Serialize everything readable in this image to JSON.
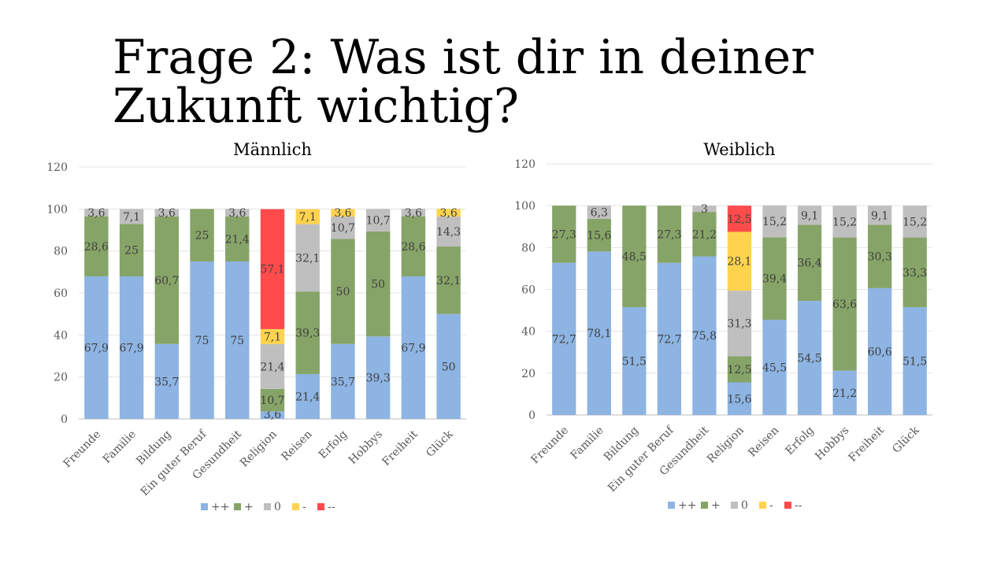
{
  "title": "Frage 2: Was ist dir in deiner Zukunft wichtig?",
  "colors": {
    "++": "#8DB4E2",
    "+": "#86A467",
    "0": "#BFBFBF",
    "-": "#FFD34D",
    "--": "#FF4B4B"
  },
  "chart_data": [
    {
      "type": "bar",
      "stacked": true,
      "title": "Männlich",
      "ylim": [
        0,
        120
      ],
      "yticks": [
        0,
        20,
        40,
        60,
        80,
        100,
        120
      ],
      "categories": [
        "Freunde",
        "Familie",
        "Bildung",
        "Ein guter Beruf",
        "Gesundheit",
        "Religion",
        "Reisen",
        "Erfolg",
        "Hobbys",
        "Freiheit",
        "Glück"
      ],
      "series": [
        {
          "name": "++",
          "values": [
            67.9,
            67.9,
            35.7,
            75,
            75,
            3.6,
            21.4,
            35.7,
            39.3,
            67.9,
            50
          ]
        },
        {
          "name": "+",
          "values": [
            28.6,
            25,
            60.7,
            25,
            21.4,
            10.7,
            39.3,
            50,
            50,
            28.6,
            32.1
          ]
        },
        {
          "name": "0",
          "values": [
            3.6,
            7.1,
            3.6,
            null,
            3.6,
            21.4,
            32.1,
            10.7,
            10.7,
            3.6,
            14.3
          ]
        },
        {
          "name": "-",
          "values": [
            null,
            null,
            null,
            null,
            null,
            7.1,
            7.1,
            3.6,
            null,
            null,
            3.6
          ]
        },
        {
          "name": "--",
          "values": [
            null,
            null,
            null,
            null,
            null,
            57.1,
            null,
            null,
            null,
            null,
            null
          ]
        }
      ],
      "data_labels": [
        [
          "67,9",
          "67,9",
          "35,7",
          "75",
          "75",
          "3,6",
          "21,4",
          "35,7",
          "39,3",
          "67,9",
          "50"
        ],
        [
          "28,6",
          "25",
          "60,7",
          "25",
          "21,4",
          "10,7",
          "39,3",
          "50",
          "50",
          "28,6",
          "32,1"
        ],
        [
          "3,6",
          "7,1",
          "3,6",
          null,
          "3,6",
          "21,4",
          "32,1",
          "10,7",
          "10,7",
          "3,6",
          "14,3"
        ],
        [
          null,
          null,
          null,
          null,
          null,
          "7,1",
          "7,1",
          "3,6",
          null,
          null,
          "3,6"
        ],
        [
          null,
          null,
          null,
          null,
          null,
          "57,1",
          null,
          null,
          null,
          null,
          null
        ]
      ],
      "legend": "bottom"
    },
    {
      "type": "bar",
      "stacked": true,
      "title": "Weiblich",
      "ylim": [
        0,
        120
      ],
      "yticks": [
        0,
        20,
        40,
        60,
        80,
        100,
        120
      ],
      "categories": [
        "Freunde",
        "Familie",
        "Bildung",
        "Ein guter Beruf",
        "Gesundheit",
        "Religion",
        "Reisen",
        "Erfolg",
        "Hobbys",
        "Freiheit",
        "Glück"
      ],
      "series": [
        {
          "name": "++",
          "values": [
            72.7,
            78.1,
            51.5,
            72.7,
            75.8,
            15.6,
            45.5,
            54.5,
            21.2,
            60.6,
            51.5
          ]
        },
        {
          "name": "+",
          "values": [
            27.3,
            15.6,
            48.5,
            27.3,
            21.2,
            12.5,
            39.4,
            36.4,
            63.6,
            30.3,
            33.3
          ]
        },
        {
          "name": "0",
          "values": [
            null,
            6.3,
            null,
            null,
            3,
            31.3,
            15.2,
            9.1,
            15.2,
            9.1,
            15.2
          ]
        },
        {
          "name": "-",
          "values": [
            null,
            null,
            null,
            null,
            null,
            28.1,
            null,
            null,
            null,
            null,
            null
          ]
        },
        {
          "name": "--",
          "values": [
            null,
            null,
            null,
            null,
            null,
            12.5,
            null,
            null,
            null,
            null,
            null
          ]
        }
      ],
      "data_labels": [
        [
          "72,7",
          "78,1",
          "51,5",
          "72,7",
          "75,8",
          "15,6",
          "45,5",
          "54,5",
          "21,2",
          "60,6",
          "51,5"
        ],
        [
          "27,3",
          "15,6",
          "48,5",
          "27,3",
          "21,2",
          "12,5",
          "39,4",
          "36,4",
          "63,6",
          "30,3",
          "33,3"
        ],
        [
          null,
          "6,3",
          null,
          null,
          "3",
          "31,3",
          "15,2",
          "9,1",
          "15,2",
          "9,1",
          "15,2"
        ],
        [
          null,
          null,
          null,
          null,
          null,
          "28,1",
          null,
          null,
          null,
          null,
          null
        ],
        [
          null,
          null,
          null,
          null,
          null,
          "12,5",
          null,
          null,
          null,
          null,
          null
        ]
      ],
      "legend": "bottom"
    }
  ]
}
